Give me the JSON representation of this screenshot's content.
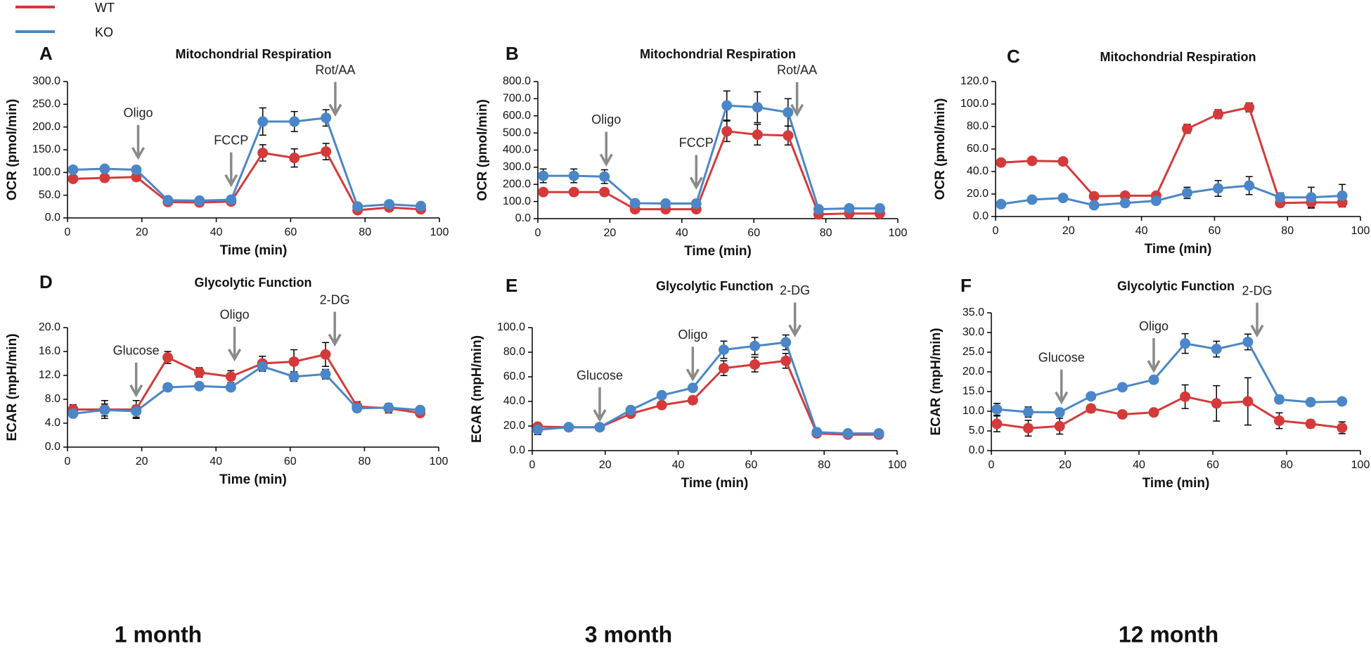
{
  "captions": [
    "1 month",
    "3 month",
    "12 month"
  ],
  "chart_data": [
    {
      "type": "line",
      "label": "A",
      "title": "Mitochondrial Respiration",
      "x_label": "Time (min)",
      "y_label": "OCR (pmol/min)",
      "x": [
        1.5,
        10,
        18.5,
        27,
        35.5,
        44,
        52.5,
        61,
        69.5,
        78,
        86.5,
        95
      ],
      "series": [
        {
          "name": "WT",
          "color": "#d43a3a",
          "values": [
            86,
            88,
            90,
            35,
            34,
            36,
            143,
            132,
            146,
            17,
            23,
            19
          ],
          "errors": [
            5,
            5,
            5,
            3,
            3,
            3,
            18,
            20,
            18,
            3,
            3,
            3
          ]
        },
        {
          "name": "KO",
          "color": "#4a86c8",
          "values": [
            106,
            108,
            106,
            39,
            38,
            40,
            212,
            212,
            220,
            25,
            30,
            26
          ],
          "errors": [
            3,
            3,
            3,
            3,
            3,
            3,
            30,
            22,
            18,
            3,
            3,
            3
          ]
        }
      ],
      "annotations": [
        {
          "text": "Oligo",
          "x": 19,
          "y": 130
        },
        {
          "text": "FCCP",
          "x": 44,
          "y": 70
        },
        {
          "text": "Rot/AA",
          "x": 72,
          "y": 225
        }
      ],
      "xlim": [
        0,
        100
      ],
      "xticks": [
        0,
        20,
        40,
        60,
        80,
        100
      ],
      "ylim": [
        0,
        300
      ],
      "yticks": [
        {
          "value": 0,
          "label": "0.0"
        },
        {
          "value": 50,
          "label": "50.0"
        },
        {
          "value": 100,
          "label": "100.0"
        },
        {
          "value": 150,
          "label": "150.0"
        },
        {
          "value": 200,
          "label": "200.0"
        },
        {
          "value": 250,
          "label": "250.0"
        },
        {
          "value": 300,
          "label": "300.0"
        }
      ]
    },
    {
      "type": "line",
      "label": "B",
      "title": "Mitochondrial Respiration",
      "x_label": "Time (min)",
      "y_label": "OCR (pmol/min)",
      "x": [
        1.5,
        10,
        18.5,
        27,
        35.5,
        44,
        52.5,
        61,
        69.5,
        78,
        86.5,
        95
      ],
      "series": [
        {
          "name": "WT",
          "color": "#d43a3a",
          "values": [
            155,
            155,
            155,
            55,
            55,
            55,
            510,
            490,
            485,
            25,
            30,
            30
          ],
          "errors": [
            15,
            15,
            15,
            10,
            10,
            10,
            60,
            60,
            55,
            10,
            10,
            10
          ]
        },
        {
          "name": "KO",
          "color": "#4a86c8",
          "values": [
            250,
            250,
            245,
            90,
            88,
            88,
            660,
            650,
            620,
            55,
            60,
            60
          ],
          "errors": [
            40,
            40,
            40,
            10,
            10,
            10,
            85,
            90,
            80,
            15,
            10,
            10
          ]
        }
      ],
      "annotations": [
        {
          "text": "Oligo",
          "x": 19,
          "y": 310
        },
        {
          "text": "FCCP",
          "x": 44,
          "y": 175
        },
        {
          "text": "Rot/AA",
          "x": 72,
          "y": 600
        }
      ],
      "xlim": [
        0,
        100
      ],
      "xticks": [
        0,
        20,
        40,
        60,
        80,
        100
      ],
      "ylim": [
        0,
        800
      ],
      "yticks": [
        {
          "value": 0,
          "label": "0.0"
        },
        {
          "value": 100,
          "label": "100.0"
        },
        {
          "value": 200,
          "label": "200.0"
        },
        {
          "value": 300,
          "label": "300.0"
        },
        {
          "value": 400,
          "label": "400.0"
        },
        {
          "value": 500,
          "label": "500.0"
        },
        {
          "value": 600,
          "label": "600.0"
        },
        {
          "value": 700,
          "label": "700.0"
        },
        {
          "value": 800,
          "label": "800.0"
        }
      ]
    },
    {
      "type": "line",
      "label": "C",
      "title": "Mitochondrial Respiration",
      "x_label": "Time (min)",
      "y_label": "OCR (pmol/min)",
      "x": [
        1.5,
        10,
        18.5,
        27,
        35.5,
        44,
        52.5,
        61,
        69.5,
        78,
        86.5,
        95
      ],
      "series": [
        {
          "name": "WT",
          "color": "#d43a3a",
          "values": [
            48,
            49.5,
            49,
            18,
            18.5,
            18.5,
            78,
            91,
            97,
            12,
            12.5,
            12.5
          ],
          "errors": [
            2,
            1,
            1,
            1,
            1,
            1,
            4,
            4,
            4,
            2,
            5,
            2
          ]
        },
        {
          "name": "KO",
          "color": "#4a86c8",
          "values": [
            11,
            15,
            16.5,
            10,
            12,
            14,
            21,
            25,
            27.5,
            17,
            17,
            18.5
          ],
          "errors": [
            2,
            2,
            2,
            2,
            2,
            2,
            5,
            7,
            8,
            4,
            9,
            10
          ]
        }
      ],
      "annotations": [],
      "xlim": [
        0,
        100
      ],
      "xticks": [
        0,
        20,
        40,
        60,
        80,
        100
      ],
      "ylim": [
        0,
        120
      ],
      "yticks": [
        {
          "value": 0,
          "label": "0.0"
        },
        {
          "value": 20,
          "label": "20.0"
        },
        {
          "value": 40,
          "label": "40.0"
        },
        {
          "value": 60,
          "label": "60.0"
        },
        {
          "value": 80,
          "label": "80.0"
        },
        {
          "value": 100,
          "label": "100.0"
        },
        {
          "value": 120,
          "label": "120.0"
        }
      ]
    },
    {
      "type": "line",
      "label": "D",
      "title": "Glycolytic Function",
      "x_label": "Time (min)",
      "y_label": "ECAR (mpH/min)",
      "x": [
        1.5,
        10,
        18.5,
        27,
        35.5,
        44,
        52.5,
        61,
        69.5,
        78,
        86.5,
        95
      ],
      "series": [
        {
          "name": "WT",
          "color": "#d43a3a",
          "values": [
            6.3,
            6.3,
            6.3,
            15,
            12.5,
            11.8,
            14,
            14.3,
            15.5,
            6.8,
            6.5,
            5.7
          ],
          "errors": [
            0.8,
            1.5,
            1.5,
            1,
            0.8,
            1,
            1.2,
            2,
            2,
            0.8,
            0.8,
            0.5
          ]
        },
        {
          "name": "KO",
          "color": "#4a86c8",
          "values": [
            5.6,
            6.2,
            6,
            10,
            10.2,
            10,
            13.5,
            11.8,
            12.2,
            6.5,
            6.6,
            6.2
          ],
          "errors": [
            0.5,
            1,
            1,
            0.6,
            0.4,
            0.4,
            0.8,
            0.8,
            0.8,
            0.5,
            0.5,
            0.6
          ]
        }
      ],
      "annotations": [
        {
          "text": "Glucose",
          "x": 18.5,
          "y": 8.5
        },
        {
          "text": "Oligo",
          "x": 45,
          "y": 14.5
        },
        {
          "text": "2-DG",
          "x": 72,
          "y": 17
        }
      ],
      "xlim": [
        0,
        100
      ],
      "xticks": [
        0,
        20,
        40,
        60,
        80,
        100
      ],
      "ylim": [
        0,
        20
      ],
      "yticks": [
        {
          "value": 0,
          "label": "0.0"
        },
        {
          "value": 4,
          "label": "4.0"
        },
        {
          "value": 8,
          "label": "8.0"
        },
        {
          "value": 12,
          "label": "12.0"
        },
        {
          "value": 16,
          "label": "16.0"
        },
        {
          "value": 20,
          "label": "20.0"
        }
      ]
    },
    {
      "type": "line",
      "label": "E",
      "title": "Glycolytic Function",
      "x_label": "Time (min)",
      "y_label": "ECAR (mpH/min)",
      "x": [
        1.5,
        10,
        18.5,
        27,
        35.5,
        44,
        52.5,
        61,
        69.5,
        78,
        86.5,
        95
      ],
      "series": [
        {
          "name": "WT",
          "color": "#d43a3a",
          "values": [
            19.5,
            19,
            19,
            30,
            37,
            41,
            67,
            70,
            73,
            14,
            13,
            13
          ],
          "errors": [
            2,
            1,
            1,
            2,
            2,
            3,
            6,
            6,
            6,
            1,
            1,
            1
          ]
        },
        {
          "name": "KO",
          "color": "#4a86c8",
          "values": [
            17,
            19,
            19,
            33,
            45,
            51,
            82,
            85,
            88,
            15,
            14,
            14
          ],
          "errors": [
            4,
            1,
            1,
            2,
            2,
            2,
            7,
            7,
            6,
            1,
            1,
            1
          ]
        }
      ],
      "annotations": [
        {
          "text": "Glucose",
          "x": 18.5,
          "y": 24
        },
        {
          "text": "Oligo",
          "x": 44,
          "y": 57
        },
        {
          "text": "2-DG",
          "x": 72,
          "y": 93
        }
      ],
      "xlim": [
        0,
        100
      ],
      "xticks": [
        0,
        20,
        40,
        60,
        80,
        100
      ],
      "ylim": [
        0,
        100
      ],
      "yticks": [
        {
          "value": 0,
          "label": "0.0"
        },
        {
          "value": 20,
          "label": "20.0"
        },
        {
          "value": 40,
          "label": "40.0"
        },
        {
          "value": 60,
          "label": "60.0"
        },
        {
          "value": 80,
          "label": "80.0"
        },
        {
          "value": 100,
          "label": "100.0"
        }
      ]
    },
    {
      "type": "line",
      "label": "F",
      "title": "Glycolytic Function",
      "x_label": "Time (min)",
      "y_label": "ECAR (mpH/min)",
      "x": [
        1.5,
        10,
        18.5,
        27,
        35.5,
        44,
        52.5,
        61,
        69.5,
        78,
        86.5,
        95
      ],
      "series": [
        {
          "name": "WT",
          "color": "#d43a3a",
          "values": [
            6.8,
            5.7,
            6.2,
            10.7,
            9.2,
            9.7,
            13.7,
            12,
            12.5,
            7.6,
            6.8,
            5.8
          ],
          "errors": [
            2,
            2,
            2,
            1,
            0.5,
            0.5,
            3,
            4.5,
            6,
            2,
            1,
            1.5
          ]
        },
        {
          "name": "KO",
          "color": "#4a86c8",
          "values": [
            10.5,
            9.8,
            9.7,
            13.8,
            16.1,
            18,
            27.2,
            25.8,
            27.6,
            13,
            12.3,
            12.5
          ],
          "errors": [
            1.5,
            1.3,
            1,
            0.5,
            0.5,
            0.5,
            2.5,
            2,
            2,
            1,
            0.7,
            0.6
          ]
        }
      ],
      "annotations": [
        {
          "text": "Glucose",
          "x": 19,
          "y": 12
        },
        {
          "text": "Oligo",
          "x": 44,
          "y": 20
        },
        {
          "text": "2-DG",
          "x": 72,
          "y": 29
        }
      ],
      "xlim": [
        0,
        100
      ],
      "xticks": [
        0,
        20,
        40,
        60,
        80,
        100
      ],
      "ylim": [
        0,
        35
      ],
      "yticks": [
        {
          "value": 0,
          "label": "0.0"
        },
        {
          "value": 5,
          "label": "5.0"
        },
        {
          "value": 10,
          "label": "10.0"
        },
        {
          "value": 15,
          "label": "15.0"
        },
        {
          "value": 20,
          "label": "20.0"
        },
        {
          "value": 25,
          "label": "25.0"
        },
        {
          "value": 30,
          "label": "30.0"
        },
        {
          "value": 35,
          "label": "35.0"
        }
      ]
    }
  ]
}
